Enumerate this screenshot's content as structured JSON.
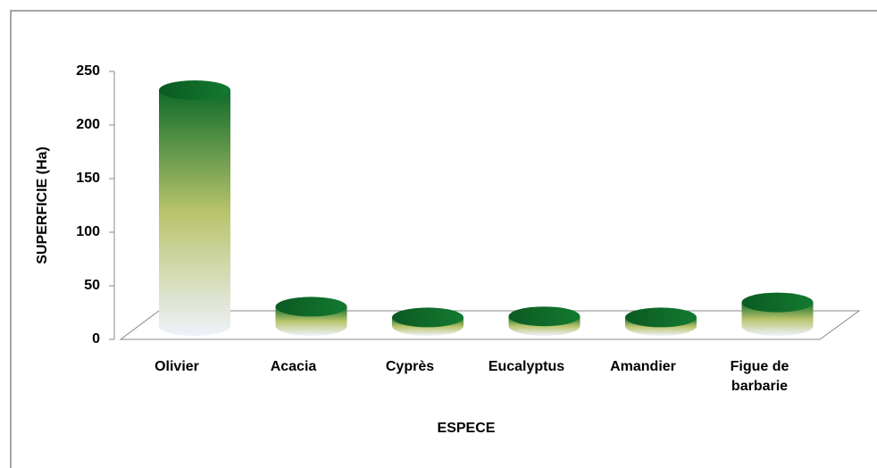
{
  "chart_data": {
    "type": "bar3d",
    "categories": [
      "Olivier",
      "Acacia",
      "Cyprès",
      "Eucalyptus",
      "Amandier",
      "Figue de barbarie"
    ],
    "values": [
      220,
      18,
      8,
      9,
      8,
      22
    ],
    "color": "#0f6b2a",
    "ylim": [
      0,
      250
    ],
    "yticks": [
      0,
      50,
      100,
      150,
      200,
      250
    ],
    "xlabel": "ESPECE",
    "ylabel": "SUPERFICIE (Ha)"
  }
}
